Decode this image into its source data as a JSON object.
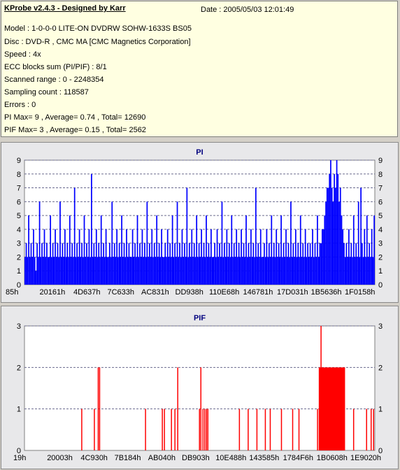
{
  "info": {
    "title": "KProbe v2.4.3 - Designed by Karr",
    "date": "Date : 2005/05/03 12:01:49",
    "lines": [
      "Model : 1-0-0-0 LITE-ON DVDRW SOHW-1633S BS05",
      "Disc : DVD-R , CMC MA [CMC Magnetics Corporation]",
      "Speed : 4x",
      "ECC blocks sum (PI/PIF) : 8/1",
      "Scanned range : 0 - 2248354",
      "Sampling count : 118587",
      "Errors : 0",
      "PI Max= 9 , Average= 0.74 , Total= 12690",
      "PIF Max= 3 , Average= 0.15 , Total= 2562"
    ]
  },
  "colors": {
    "pi": "#0000ff",
    "pif": "#ff0000",
    "title": "#00007f",
    "plot_bg": "#ffffff",
    "grid": "#6b6b8f"
  },
  "chart_data": [
    {
      "type": "bar",
      "title": "PI",
      "ylim": [
        0,
        9
      ],
      "yticks": [
        0,
        1,
        2,
        3,
        4,
        5,
        6,
        7,
        8,
        9
      ],
      "x_tick_labels": [
        "85h",
        "20161h",
        "4D637h",
        "7C633h",
        "AC831h",
        "DD938h",
        "110E68h",
        "146781h",
        "17D031h",
        "1B5636h",
        "1F0158h"
      ],
      "grid": true,
      "baseline": 2,
      "values": [
        2,
        3,
        2,
        5,
        2,
        3,
        2,
        4,
        2,
        1,
        3,
        2,
        6,
        2,
        3,
        2,
        4,
        2,
        3,
        2,
        2,
        5,
        2,
        3,
        2,
        4,
        2,
        3,
        2,
        6,
        2,
        3,
        2,
        4,
        2,
        3,
        2,
        5,
        2,
        3,
        2,
        7,
        2,
        3,
        2,
        4,
        2,
        3,
        2,
        5,
        2,
        3,
        2,
        4,
        2,
        8,
        2,
        3,
        2,
        4,
        2,
        3,
        2,
        5,
        2,
        3,
        2,
        4,
        2,
        2,
        3,
        2,
        6,
        2,
        3,
        2,
        4,
        2,
        3,
        2,
        5,
        2,
        3,
        2,
        4,
        2,
        3,
        2,
        2,
        4,
        2,
        3,
        2,
        5,
        2,
        3,
        2,
        4,
        2,
        3,
        2,
        6,
        2,
        3,
        2,
        4,
        2,
        3,
        2,
        5,
        2,
        3,
        2,
        4,
        2,
        2,
        3,
        2,
        4,
        2,
        3,
        2,
        5,
        2,
        3,
        2,
        6,
        2,
        3,
        2,
        4,
        2,
        3,
        2,
        7,
        2,
        3,
        2,
        4,
        2,
        3,
        2,
        5,
        2,
        3,
        2,
        4,
        2,
        3,
        2,
        5,
        2,
        3,
        2,
        4,
        2,
        2,
        3,
        2,
        4,
        2,
        3,
        2,
        6,
        2,
        3,
        2,
        4,
        2,
        3,
        2,
        5,
        2,
        3,
        2,
        4,
        2,
        3,
        2,
        4,
        2,
        3,
        2,
        5,
        2,
        3,
        2,
        4,
        2,
        3,
        2,
        7,
        2,
        3,
        2,
        4,
        2,
        2,
        3,
        2,
        4,
        2,
        3,
        2,
        5,
        2,
        3,
        2,
        4,
        2,
        3,
        2,
        5,
        2,
        3,
        2,
        4,
        2,
        3,
        2,
        6,
        2,
        3,
        2,
        4,
        2,
        3,
        2,
        5,
        2,
        3,
        2,
        4,
        2,
        3,
        2,
        3,
        2,
        4,
        2,
        3,
        2,
        5,
        2,
        3,
        3,
        4,
        4,
        5,
        6,
        7,
        7,
        8,
        9,
        7,
        6,
        8,
        7,
        9,
        8,
        6,
        7,
        5,
        4,
        3,
        2,
        3,
        2,
        4,
        2,
        3,
        2,
        5,
        2,
        3,
        2,
        6,
        2,
        7,
        3,
        2,
        4,
        2,
        5,
        2,
        3,
        2,
        4,
        2,
        5
      ]
    },
    {
      "type": "bar",
      "title": "PIF",
      "ylim": [
        0,
        3
      ],
      "yticks": [
        0,
        1,
        2,
        3
      ],
      "x_tick_labels": [
        "19h",
        "20003h",
        "4C930h",
        "7B184h",
        "AB040h",
        "DB903h",
        "10E488h",
        "143585h",
        "1784F6h",
        "1B0608h",
        "1E9020h"
      ],
      "grid": true,
      "baseline": 0,
      "spikes": [
        {
          "x": 0.162,
          "y": 1
        },
        {
          "x": 0.198,
          "y": 1
        },
        {
          "x": 0.209,
          "y": 2
        },
        {
          "x": 0.213,
          "y": 2
        },
        {
          "x": 0.344,
          "y": 1
        },
        {
          "x": 0.392,
          "y": 1
        },
        {
          "x": 0.398,
          "y": 1
        },
        {
          "x": 0.418,
          "y": 1
        },
        {
          "x": 0.428,
          "y": 1
        },
        {
          "x": 0.436,
          "y": 2
        },
        {
          "x": 0.498,
          "y": 1
        },
        {
          "x": 0.502,
          "y": 2
        },
        {
          "x": 0.508,
          "y": 1
        },
        {
          "x": 0.513,
          "y": 1
        },
        {
          "x": 0.518,
          "y": 1
        },
        {
          "x": 0.522,
          "y": 1
        },
        {
          "x": 0.612,
          "y": 1
        },
        {
          "x": 0.637,
          "y": 1
        },
        {
          "x": 0.662,
          "y": 1
        },
        {
          "x": 0.686,
          "y": 1
        },
        {
          "x": 0.7,
          "y": 1
        },
        {
          "x": 0.732,
          "y": 1
        },
        {
          "x": 0.764,
          "y": 1
        },
        {
          "x": 0.782,
          "y": 1
        },
        {
          "x": 0.835,
          "y": 1
        },
        {
          "x": 0.84,
          "y": 1
        },
        {
          "x": 0.938,
          "y": 1
        },
        {
          "x": 0.975,
          "y": 1
        },
        {
          "x": 0.988,
          "y": 1
        },
        {
          "x": 0.995,
          "y": 1
        }
      ],
      "blocks": [
        {
          "x0": 0.84,
          "x1": 0.915,
          "y": 2
        },
        {
          "x0": 0.845,
          "x1": 0.848,
          "y": 3
        }
      ]
    }
  ]
}
